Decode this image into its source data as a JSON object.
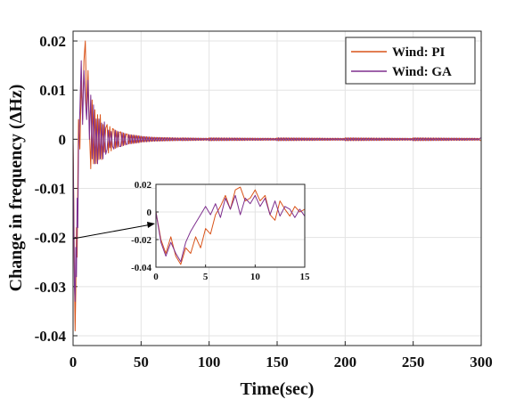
{
  "chart_data": [
    {
      "type": "line",
      "title": "",
      "xlabel": "Time(sec)",
      "ylabel": "Change in frequency (ΔHz)",
      "xlim": [
        0,
        300
      ],
      "ylim": [
        -0.042,
        0.022
      ],
      "xticks": [
        0,
        50,
        100,
        150,
        200,
        250,
        300
      ],
      "xtick_labels": [
        "0",
        "50",
        "100",
        "150",
        "200",
        "250",
        "300"
      ],
      "yticks": [
        0.02,
        0.01,
        0,
        -0.01,
        -0.02,
        -0.03,
        -0.04
      ],
      "ytick_labels": [
        "0.02",
        "0.01",
        "0",
        "-0.01",
        "-0.02",
        "-0.03",
        "-0.04"
      ],
      "grid": true,
      "legend_position": "top-right",
      "series": [
        {
          "name": "Wind: PI",
          "color": "#D95319",
          "x": [
            0,
            0.5,
            1,
            1.5,
            2,
            2.5,
            3,
            3.5,
            4,
            5,
            6,
            7,
            8,
            9,
            10,
            11,
            12,
            13,
            14,
            15,
            16,
            18,
            20,
            22,
            25,
            30,
            35,
            40,
            50,
            60,
            80,
            100,
            150,
            200,
            250,
            300
          ],
          "y": [
            0,
            -0.012,
            -0.028,
            -0.039,
            -0.031,
            -0.018,
            -0.024,
            -0.008,
            0.004,
            -0.002,
            0.012,
            0.004,
            0.016,
            0.02,
            0.006,
            0.014,
            0.002,
            -0.006,
            0.008,
            -0.005,
            0.006,
            -0.003,
            0.005,
            -0.002,
            0.003,
            -0.002,
            0.0015,
            -0.001,
            0.0006,
            -0.0004,
            0.0003,
            -0.0003,
            0.0003,
            -0.0003,
            0.0003,
            -0.0003
          ]
        },
        {
          "name": "Wind: GA",
          "color": "#7E2F8E",
          "x": [
            0,
            0.5,
            1,
            1.5,
            2,
            2.5,
            3,
            3.5,
            4,
            5,
            6,
            7,
            8,
            9,
            10,
            11,
            12,
            13,
            14,
            15,
            16,
            18,
            20,
            22,
            25,
            30,
            35,
            40,
            50,
            60,
            80,
            100,
            150,
            200,
            250,
            300
          ],
          "y": [
            0,
            -0.015,
            -0.03,
            -0.033,
            -0.022,
            -0.028,
            -0.012,
            -0.018,
            -0.002,
            0.006,
            0.016,
            0.003,
            0.014,
            0.008,
            0.004,
            0.012,
            0.0,
            0.009,
            -0.004,
            0.007,
            -0.002,
            0.005,
            -0.003,
            0.004,
            -0.002,
            0.002,
            -0.0015,
            0.001,
            -0.0006,
            0.0004,
            -0.0003,
            0.0003,
            -0.0003,
            0.0003,
            -0.0003,
            0.0003
          ]
        }
      ]
    },
    {
      "type": "line",
      "title": "",
      "xlim": [
        0,
        15
      ],
      "ylim": [
        -0.04,
        0.02
      ],
      "xticks": [
        0,
        5,
        10,
        15
      ],
      "xtick_labels": [
        "0",
        "5",
        "10",
        "15"
      ],
      "yticks": [
        0.02,
        0,
        -0.02,
        -0.04
      ],
      "ytick_labels": [
        "0.02",
        "0",
        "-0.02",
        "-0.04"
      ],
      "grid": true,
      "series": [
        {
          "name": "Wind: PI",
          "color": "#D95319",
          "x": [
            0,
            0.5,
            1,
            1.5,
            2,
            2.5,
            3,
            3.5,
            4,
            4.5,
            5,
            5.5,
            6,
            6.5,
            7,
            7.5,
            8,
            8.5,
            9,
            9.5,
            10,
            10.5,
            11,
            11.5,
            12,
            12.5,
            13,
            13.5,
            14,
            14.5,
            15
          ],
          "y": [
            0,
            -0.02,
            -0.03,
            -0.018,
            -0.032,
            -0.038,
            -0.026,
            -0.03,
            -0.018,
            -0.026,
            -0.012,
            -0.016,
            -0.002,
            0.004,
            0.012,
            0.002,
            0.016,
            0.018,
            0.008,
            0.01,
            0.016,
            0.008,
            0.012,
            -0.002,
            -0.006,
            0.008,
            0.002,
            -0.003,
            0.004,
            0.0,
            0.002
          ]
        },
        {
          "name": "Wind: GA",
          "color": "#7E2F8E",
          "x": [
            0,
            0.5,
            1,
            1.5,
            2,
            2.5,
            3,
            3.5,
            4,
            4.5,
            5,
            5.5,
            6,
            6.5,
            7,
            7.5,
            8,
            8.5,
            9,
            9.5,
            10,
            10.5,
            11,
            11.5,
            12,
            12.5,
            13,
            13.5,
            14,
            14.5,
            15
          ],
          "y": [
            0,
            -0.022,
            -0.032,
            -0.022,
            -0.03,
            -0.036,
            -0.022,
            -0.014,
            -0.008,
            -0.002,
            0.004,
            -0.002,
            0.006,
            -0.004,
            0.01,
            0.002,
            0.012,
            -0.002,
            0.01,
            0.006,
            0.012,
            0.004,
            0.01,
            -0.002,
            0.008,
            -0.003,
            0.004,
            0.002,
            -0.004,
            0.002,
            -0.003
          ]
        }
      ]
    }
  ]
}
